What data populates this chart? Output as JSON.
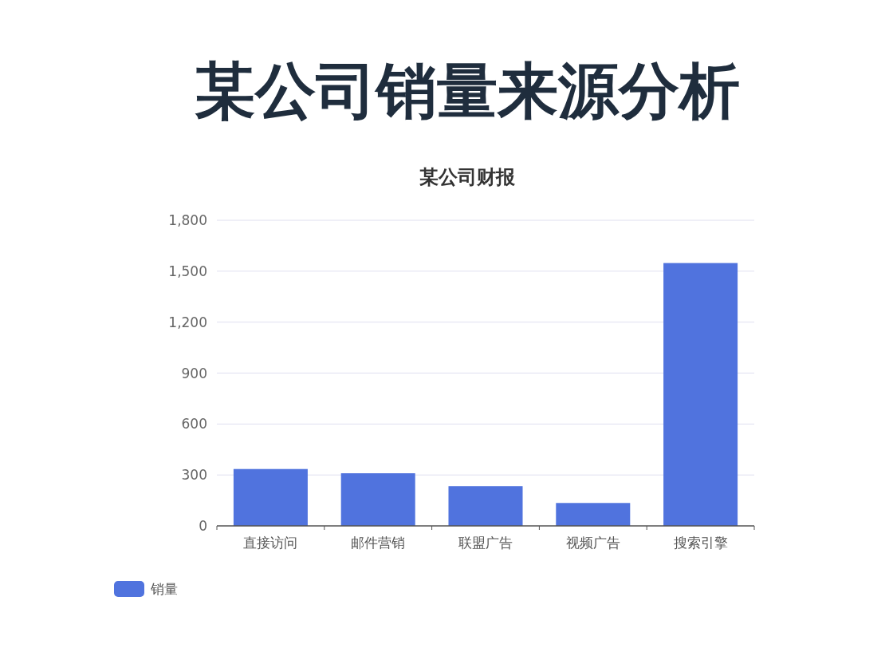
{
  "chart_data": {
    "type": "bar",
    "title": "某公司销量来源分析",
    "subtitle": "某公司财报",
    "categories": [
      "直接访问",
      "邮件营销",
      "联盟广告",
      "视频广告",
      "搜索引擎"
    ],
    "series": [
      {
        "name": "销量",
        "color": "#5073de",
        "values": [
          335,
          310,
          234,
          135,
          1548
        ]
      }
    ],
    "ylim": [
      0,
      1800
    ],
    "yticks": [
      0,
      300,
      600,
      900,
      {
        "value": 1200,
        "label": "1,200"
      },
      {
        "value": 1500,
        "label": "1,500"
      },
      {
        "value": 1800,
        "label": "1,800"
      }
    ],
    "grid": "y",
    "legend": "bottom left"
  }
}
